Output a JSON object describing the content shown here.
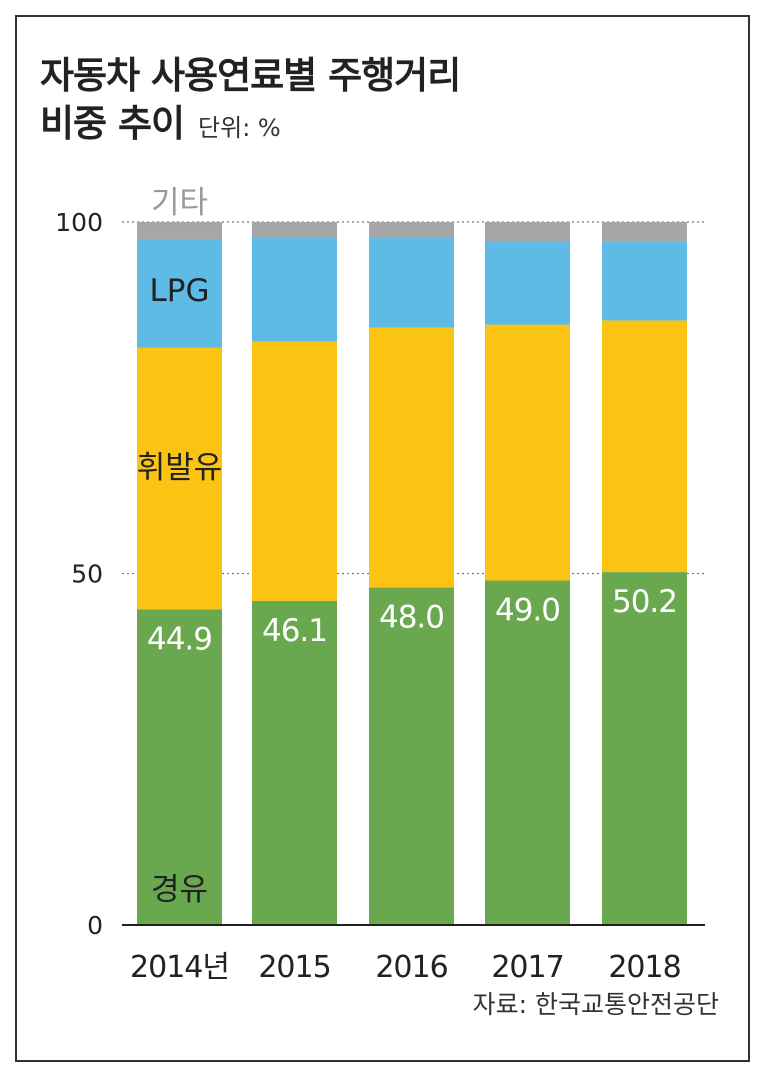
{
  "title_line1": "자동차 사용연료별 주행거리",
  "title_line2": "비중 추이",
  "unit_label": "단위: %",
  "source": "자료: 한국교통안전공단",
  "chart_data": {
    "type": "bar",
    "stacked": true,
    "categories": [
      "2014년",
      "2015",
      "2016",
      "2017",
      "2018"
    ],
    "series": [
      {
        "name": "경유",
        "color": "#6aa84f",
        "values": [
          44.9,
          46.1,
          48.0,
          49.0,
          50.2
        ],
        "value_labels": [
          "44.9",
          "46.1",
          "48.0",
          "49.0",
          "50.2"
        ]
      },
      {
        "name": "휘발유",
        "color": "#fbc312",
        "values": [
          37.2,
          36.9,
          37.0,
          36.4,
          35.8
        ]
      },
      {
        "name": "LPG",
        "color": "#5dbbe6",
        "values": [
          15.5,
          14.8,
          12.8,
          11.9,
          11.2
        ]
      },
      {
        "name": "기타",
        "color": "#a5a6a8",
        "values": [
          2.4,
          2.2,
          2.2,
          2.7,
          2.8
        ]
      }
    ],
    "ylim": [
      0,
      100
    ],
    "yticks": [
      "0",
      "50",
      "100"
    ],
    "gridlines": [
      50,
      100
    ]
  }
}
